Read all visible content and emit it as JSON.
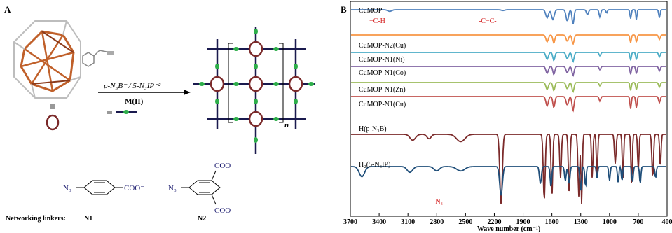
{
  "panel_a": {
    "label": "A",
    "reagent_line1": "p-N₃B⁻ / 5-N₃IP⁻²",
    "reagent_line2": "M(II)",
    "polymer_subscript": "n",
    "linkers_caption": "Networking linkers:",
    "linker_n1_name": "N1",
    "linker_n2_name": "N2",
    "n1_azide": "N₃",
    "n1_carboxylate": "COO⁻",
    "n2_azide": "N₃",
    "n2_carboxylate_top": "COO⁻",
    "n2_carboxylate_bottom": "COO⁻"
  },
  "chart_data": {
    "type": "line",
    "panel_label": "B",
    "xlabel": "Wave number (cm⁻¹)",
    "x_ticks": [
      "3700",
      "3400",
      "3100",
      "2800",
      "2500",
      "2200",
      "1900",
      "1600",
      "1300",
      "1000",
      "700",
      "400"
    ],
    "x_tick_values": [
      3700,
      3400,
      3100,
      2800,
      2500,
      2200,
      1900,
      1600,
      1300,
      1000,
      700,
      400
    ],
    "xlim": [
      3700,
      400
    ],
    "x_reversed": true,
    "series": [
      {
        "name": "CuMOP",
        "color": "#4f81bd",
        "baseline": 0.0,
        "depth": 0.55,
        "bands": [
          [
            3290,
            0.1,
            30
          ],
          [
            2110,
            0.05,
            25
          ],
          [
            1650,
            0.5,
            20
          ],
          [
            1590,
            0.6,
            20
          ],
          [
            1440,
            0.7,
            18
          ],
          [
            1380,
            0.9,
            14
          ],
          [
            1230,
            0.3,
            15
          ],
          [
            1100,
            0.45,
            12
          ],
          [
            1030,
            0.2,
            10
          ],
          [
            780,
            0.55,
            10
          ],
          [
            720,
            0.65,
            8
          ],
          [
            480,
            0.5,
            10
          ]
        ]
      },
      {
        "name": "CuMOP-N2(Cu)",
        "color": "#f79646",
        "baseline": 0.0,
        "depth": 0.45,
        "bands": [
          [
            1650,
            0.6,
            18
          ],
          [
            1580,
            0.7,
            15
          ],
          [
            1440,
            0.55,
            18
          ],
          [
            1380,
            0.8,
            15
          ],
          [
            780,
            0.7,
            10
          ],
          [
            720,
            0.65,
            10
          ],
          [
            480,
            0.4,
            12
          ]
        ]
      },
      {
        "name": "CuMOP-N1(Ni)",
        "color": "#4bacc6",
        "baseline": 0.0,
        "depth": 0.45,
        "bands": [
          [
            1650,
            0.6,
            18
          ],
          [
            1580,
            0.7,
            15
          ],
          [
            1440,
            0.55,
            18
          ],
          [
            1380,
            0.8,
            15
          ],
          [
            1100,
            0.3,
            12
          ],
          [
            780,
            0.7,
            10
          ],
          [
            720,
            0.65,
            10
          ],
          [
            480,
            0.4,
            12
          ]
        ]
      },
      {
        "name": "CuMOP-N1(Co)",
        "color": "#8064a2",
        "baseline": 0.0,
        "depth": 0.45,
        "bands": [
          [
            1650,
            0.6,
            18
          ],
          [
            1580,
            0.7,
            15
          ],
          [
            1440,
            0.55,
            18
          ],
          [
            1380,
            0.8,
            15
          ],
          [
            1100,
            0.3,
            12
          ],
          [
            780,
            0.7,
            10
          ],
          [
            720,
            0.65,
            10
          ],
          [
            480,
            0.4,
            12
          ]
        ]
      },
      {
        "name": "CuMOP-N1(Zn)",
        "color": "#9bbb59",
        "baseline": 0.0,
        "depth": 0.45,
        "bands": [
          [
            1650,
            0.6,
            18
          ],
          [
            1580,
            0.7,
            15
          ],
          [
            1440,
            0.55,
            18
          ],
          [
            1380,
            0.8,
            15
          ],
          [
            1100,
            0.3,
            12
          ],
          [
            780,
            0.7,
            10
          ],
          [
            720,
            0.65,
            10
          ],
          [
            480,
            0.4,
            12
          ]
        ]
      },
      {
        "name": "CuMOP-N1(Cu)",
        "color": "#c0504d",
        "baseline": 0.0,
        "depth": 0.55,
        "bands": [
          [
            1650,
            0.6,
            18
          ],
          [
            1580,
            0.7,
            15
          ],
          [
            1440,
            0.55,
            18
          ],
          [
            1380,
            0.9,
            15
          ],
          [
            1100,
            0.3,
            12
          ],
          [
            780,
            0.8,
            10
          ],
          [
            720,
            0.75,
            10
          ],
          [
            480,
            0.4,
            12
          ]
        ]
      },
      {
        "name": "H(p-N₃B)",
        "color": "#7b2a2a",
        "baseline": 0.0,
        "depth": 0.95,
        "bands": [
          [
            3050,
            0.08,
            40
          ],
          [
            2880,
            0.06,
            30
          ],
          [
            2550,
            0.1,
            60
          ],
          [
            2130,
            0.95,
            18
          ],
          [
            1680,
            0.9,
            14
          ],
          [
            1600,
            0.85,
            12
          ],
          [
            1510,
            0.6,
            12
          ],
          [
            1420,
            0.8,
            12
          ],
          [
            1320,
            0.85,
            12
          ],
          [
            1290,
            0.95,
            10
          ],
          [
            1180,
            0.6,
            10
          ],
          [
            1130,
            0.55,
            10
          ],
          [
            940,
            0.4,
            12
          ],
          [
            860,
            0.6,
            10
          ],
          [
            770,
            0.7,
            10
          ],
          [
            700,
            0.5,
            10
          ],
          [
            550,
            0.6,
            12
          ],
          [
            470,
            0.45,
            10
          ]
        ]
      },
      {
        "name": "H₂(5-N₃IP)",
        "color": "#1f4e79",
        "baseline": 0.0,
        "depth": 0.55,
        "bands": [
          [
            3580,
            0.35,
            40
          ],
          [
            3080,
            0.2,
            40
          ],
          [
            2800,
            0.15,
            40
          ],
          [
            2550,
            0.15,
            60
          ],
          [
            2130,
            1.0,
            20
          ],
          [
            1720,
            0.6,
            14
          ],
          [
            1610,
            0.7,
            12
          ],
          [
            1460,
            0.5,
            12
          ],
          [
            1420,
            0.6,
            12
          ],
          [
            1300,
            0.85,
            12
          ],
          [
            1250,
            0.7,
            10
          ],
          [
            1130,
            0.4,
            10
          ],
          [
            1000,
            0.5,
            10
          ],
          [
            910,
            0.55,
            10
          ],
          [
            870,
            0.5,
            10
          ],
          [
            760,
            0.55,
            10
          ],
          [
            680,
            0.6,
            10
          ],
          [
            520,
            0.4,
            10
          ]
        ]
      }
    ],
    "annotations": [
      "≡C-H",
      "-C≡C-",
      "-N₃"
    ]
  }
}
